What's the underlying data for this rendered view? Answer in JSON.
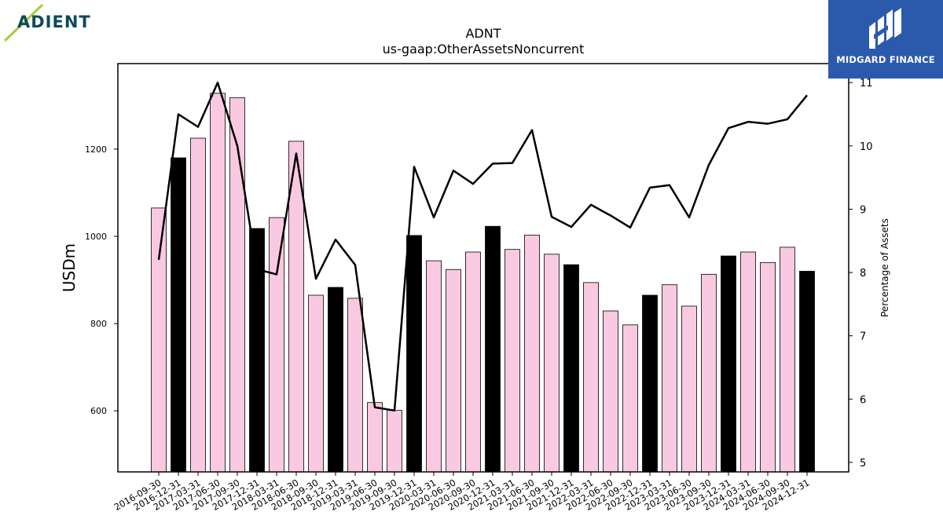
{
  "logos": {
    "left_text": "ADIENT",
    "right_text": "MIDGARD FINANCE"
  },
  "colors": {
    "bar_pink": "#f9c9e1",
    "bar_black": "#000000",
    "line": "#000000",
    "logo_right_bg": "#2b5aad",
    "logo_left_text": "#0d4a5c",
    "logo_left_accent": "#a7cf3a"
  },
  "chart_data": {
    "type": "bar",
    "title": "ADNT",
    "subtitle": "us-gaap:OtherAssetsNoncurrent",
    "ylabel": "USDm",
    "y2label": "Percentage of Assets",
    "ylim": [
      460,
      1396
    ],
    "y2lim": [
      4.85,
      11.3
    ],
    "yticks": [
      600,
      800,
      1000,
      1200
    ],
    "y2ticks": [
      5,
      6,
      7,
      8,
      9,
      10,
      11
    ],
    "categories": [
      "2016-09-30",
      "2016-12-31",
      "2017-03-31",
      "2017-06-30",
      "2017-09-30",
      "2017-12-31",
      "2018-03-31",
      "2018-06-30",
      "2018-09-30",
      "2018-12-31",
      "2019-03-31",
      "2019-06-30",
      "2019-09-30",
      "2019-12-31",
      "2020-03-31",
      "2020-06-30",
      "2020-09-30",
      "2020-12-31",
      "2021-03-31",
      "2021-06-30",
      "2021-09-30",
      "2021-12-31",
      "2022-03-31",
      "2022-06-30",
      "2022-09-30",
      "2022-12-31",
      "2023-03-31",
      "2023-06-30",
      "2023-09-30",
      "2023-12-31",
      "2024-03-31",
      "2024-06-30",
      "2024-09-30",
      "2024-12-31"
    ],
    "series": [
      {
        "kind": "bar",
        "values": [
          1065,
          1180,
          1225,
          1328,
          1318,
          1018,
          1043,
          1218,
          865,
          883,
          858,
          619,
          601,
          1002,
          944,
          924,
          964,
          1023,
          970,
          1003,
          959,
          935,
          894,
          829,
          797,
          865,
          889,
          840,
          913,
          955,
          964,
          940,
          975,
          920
        ],
        "highlight": [
          false,
          true,
          false,
          false,
          false,
          true,
          false,
          false,
          false,
          true,
          false,
          false,
          false,
          true,
          false,
          false,
          false,
          true,
          false,
          false,
          false,
          true,
          false,
          false,
          false,
          true,
          false,
          false,
          false,
          true,
          false,
          false,
          false,
          true
        ]
      },
      {
        "kind": "line",
        "axis": "right",
        "values": [
          8.2,
          10.5,
          10.3,
          11.0,
          10.0,
          8.05,
          7.97,
          9.88,
          7.9,
          8.52,
          8.12,
          5.87,
          5.82,
          9.67,
          8.87,
          9.61,
          9.4,
          9.72,
          9.73,
          10.25,
          8.88,
          8.72,
          9.07,
          8.9,
          8.71,
          9.34,
          9.38,
          8.87,
          9.7,
          10.28,
          10.38,
          10.35,
          10.42,
          10.8
        ]
      }
    ]
  }
}
